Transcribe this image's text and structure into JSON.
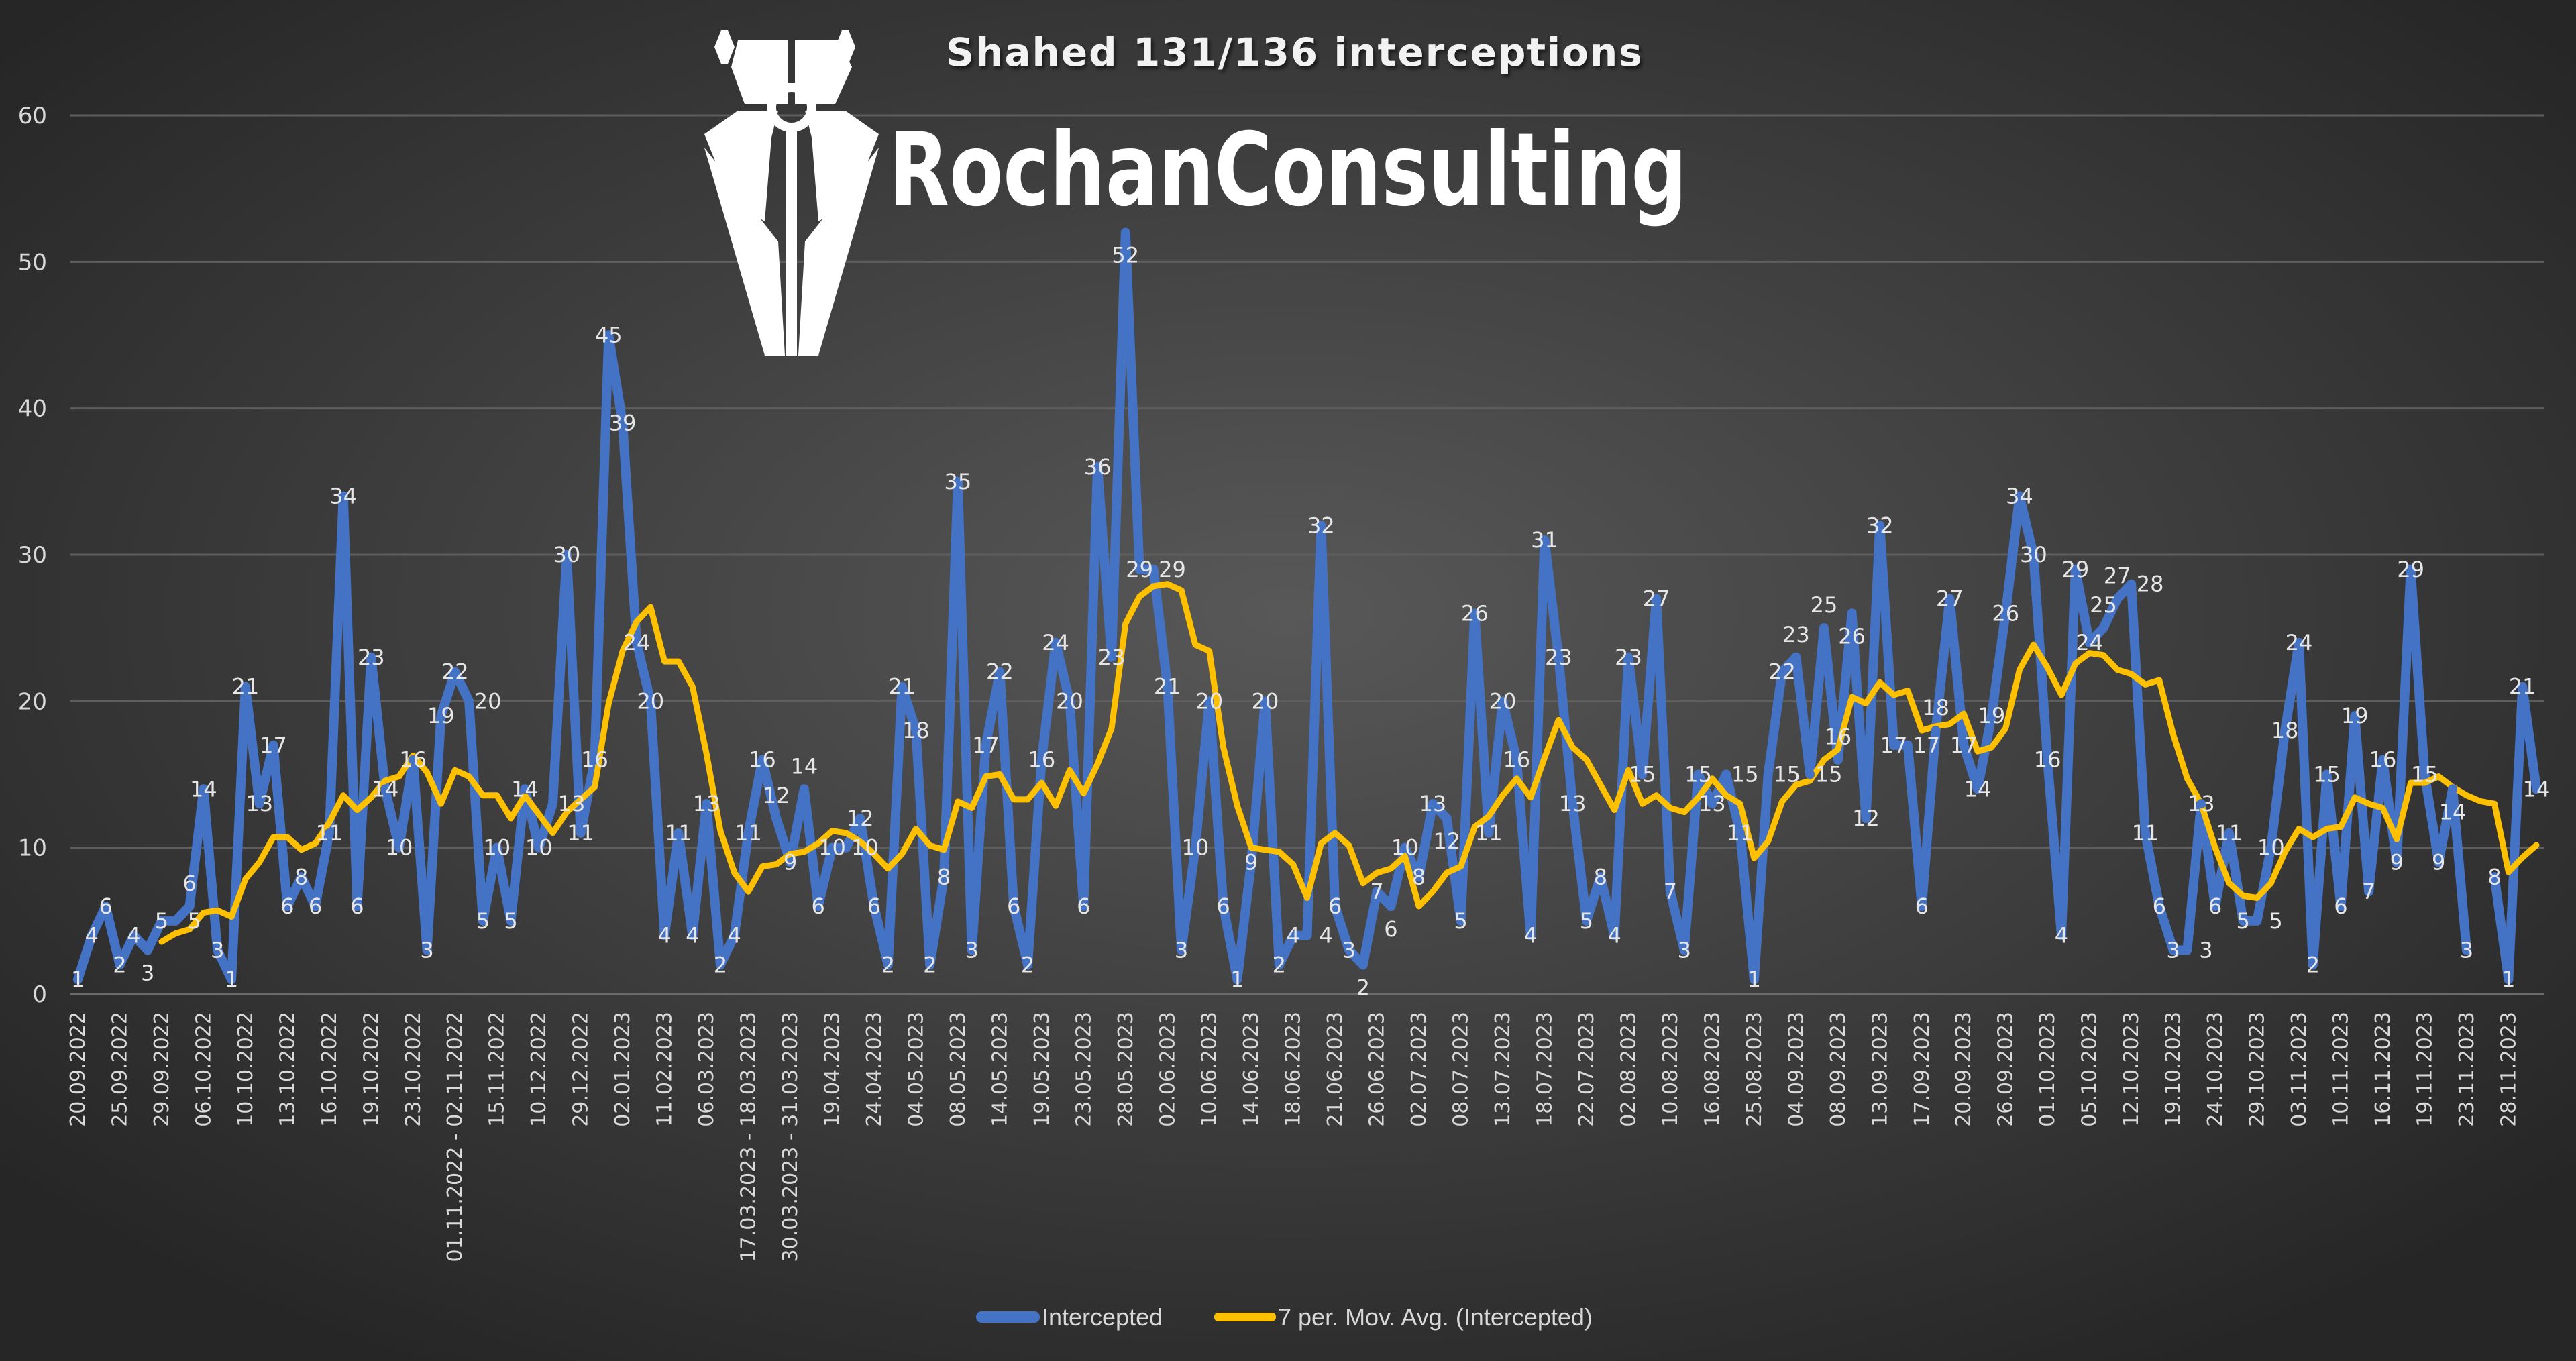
{
  "logo": {
    "text": "RochanConsulting"
  },
  "chart_data": {
    "type": "line",
    "title": "Shahed 131/136 interceptions",
    "xlabel": "",
    "ylabel": "",
    "ylim": [
      0,
      60
    ],
    "yticks": [
      0,
      10,
      20,
      30,
      40,
      50,
      60
    ],
    "grid": true,
    "legend_placement": "bottom",
    "tick_every": 3,
    "tick_labels": [
      "20.09.2022",
      "25.09.2022",
      "29.09.2022",
      "06.10.2022",
      "10.10.2022",
      "13.10.2022",
      "16.10.2022",
      "19.10.2022",
      "23.10.2022",
      "01.11.2022 - 02.11.2022",
      "15.11.2022",
      "10.12.2022",
      "29.12.2022",
      "02.01.2023",
      "11.02.2023",
      "06.03.2023",
      "17.03.2023 - 18.03.2023",
      "30.03.2023 - 31.03.2023",
      "19.04.2023",
      "24.04.2023",
      "04.05.2023",
      "08.05.2023",
      "14.05.2023",
      "19.05.2023",
      "23.05.2023",
      "28.05.2023",
      "02.06.2023",
      "10.06.2023",
      "14.06.2023",
      "18.06.2023",
      "21.06.2023",
      "26.06.2023",
      "02.07.2023",
      "08.07.2023",
      "13.07.2023",
      "18.07.2023",
      "22.07.2023",
      "02.08.2023",
      "10.08.2023",
      "16.08.2023",
      "25.08.2023",
      "04.09.2023",
      "08.09.2023",
      "13.09.2023",
      "17.09.2023",
      "20.09.2023",
      "26.09.2023",
      "01.10.2023",
      "05.10.2023",
      "12.10.2023",
      "19.10.2023",
      "24.10.2023",
      "29.10.2023",
      "03.11.2023",
      "10.11.2023",
      "16.11.2023",
      "19.11.2023",
      "23.11.2023",
      "28.11.2023"
    ],
    "series": [
      {
        "name": "Intercepted",
        "color": "#4472C4",
        "values": [
          1,
          4,
          6,
          2,
          4,
          3,
          5,
          5,
          6,
          14,
          3,
          1,
          21,
          13,
          17,
          6,
          8,
          6,
          11,
          34,
          6,
          23,
          14,
          10,
          16,
          3,
          19,
          22,
          20,
          5,
          10,
          5,
          14,
          10,
          13,
          30,
          11,
          16,
          45,
          39,
          24,
          20,
          4,
          11,
          4,
          13,
          2,
          4,
          11,
          16,
          12,
          9,
          14,
          6,
          10,
          10,
          12,
          6,
          2,
          21,
          18,
          2,
          8,
          35,
          3,
          17,
          22,
          6,
          2,
          16,
          24,
          20,
          6,
          36,
          23,
          52,
          29,
          29,
          21,
          3,
          10,
          20,
          6,
          1,
          9,
          20,
          2,
          4,
          4,
          32,
          6,
          3,
          2,
          7,
          6,
          10,
          8,
          13,
          12,
          5,
          26,
          11,
          20,
          16,
          4,
          31,
          23,
          13,
          5,
          8,
          4,
          23,
          15,
          27,
          7,
          3,
          15,
          13,
          15,
          11,
          1,
          15,
          22,
          23,
          15,
          25,
          16,
          26,
          12,
          32,
          17,
          17,
          6,
          18,
          27,
          17,
          14,
          19,
          26,
          34,
          30,
          16,
          4,
          29,
          24,
          25,
          27,
          28,
          11,
          6,
          3,
          3,
          13,
          6,
          11,
          5,
          5,
          10,
          18,
          24,
          2,
          15,
          6,
          19,
          7,
          16,
          9,
          29,
          15,
          9,
          14,
          3,
          null,
          8,
          1,
          21,
          14
        ]
      },
      {
        "name": "7 per. Mov. Avg. (Intercepted)",
        "color": "#FFC000",
        "period": 7,
        "derived_from": "Intercepted"
      }
    ]
  }
}
